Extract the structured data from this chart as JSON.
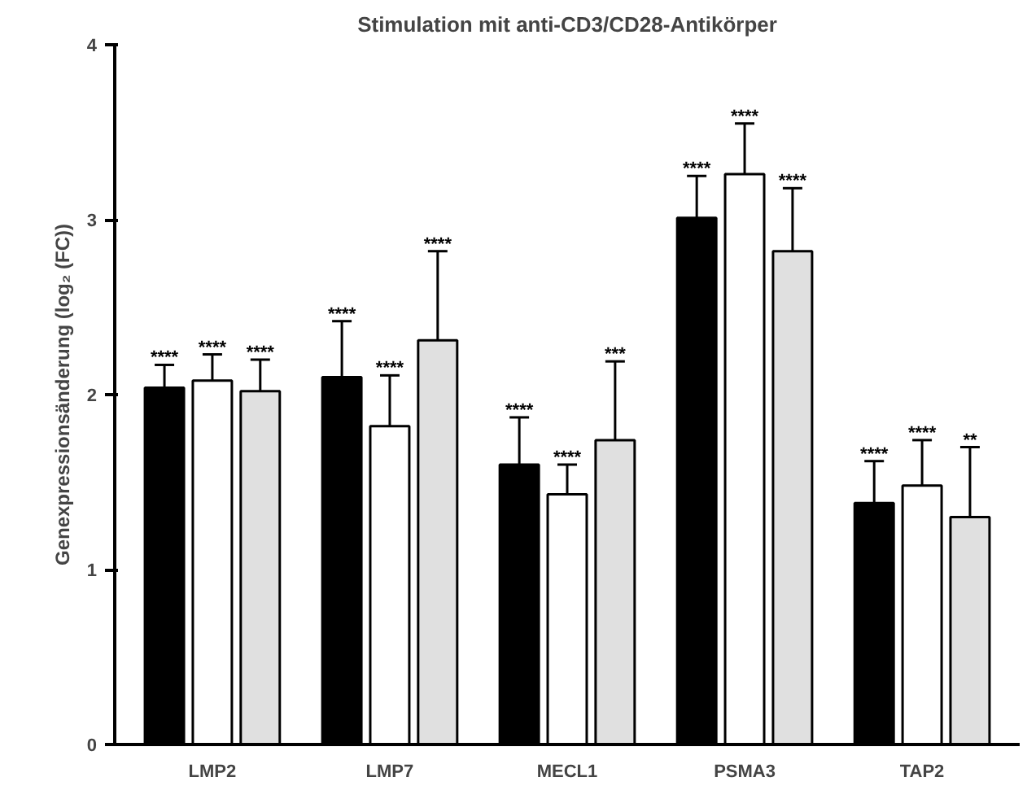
{
  "chart_data": {
    "type": "bar",
    "title": "Stimulation mit anti-CD3/CD28-Antikörper",
    "ylabel": "Genexpressionsänderung (log₂ (FC))",
    "categories": [
      "LMP2",
      "LMP7",
      "MECL1",
      "PSMA3",
      "TAP2"
    ],
    "series": [
      {
        "color": "#000000",
        "values": [
          2.04,
          2.1,
          1.6,
          3.01,
          1.38
        ],
        "errors": [
          [
            2.04,
            2.17
          ],
          [
            2.1,
            2.42
          ],
          [
            1.6,
            1.87
          ],
          [
            3.01,
            3.25
          ],
          [
            1.38,
            1.62
          ]
        ]
      },
      {
        "color": "#ffffff",
        "values": [
          2.08,
          1.82,
          1.43,
          3.26,
          1.48
        ],
        "errors": [
          [
            2.08,
            2.23
          ],
          [
            1.82,
            2.11
          ],
          [
            1.43,
            1.6
          ],
          [
            3.26,
            3.55
          ],
          [
            1.48,
            1.74
          ]
        ]
      },
      {
        "color": "#e0e0e0",
        "values": [
          2.02,
          2.31,
          1.74,
          2.82,
          1.3
        ],
        "errors": [
          [
            2.02,
            2.2
          ],
          [
            2.31,
            2.82
          ],
          [
            1.74,
            2.19
          ],
          [
            2.82,
            3.18
          ],
          [
            1.3,
            1.7
          ]
        ]
      }
    ],
    "ylim": [
      0,
      4
    ],
    "yticks": [
      0,
      1,
      2,
      3,
      4
    ],
    "grid": false,
    "annotations": [
      "****",
      "****",
      "****",
      "****",
      "****",
      "****",
      "****",
      "****",
      "***",
      "****",
      "****",
      "****",
      "****",
      "****",
      "**"
    ]
  }
}
